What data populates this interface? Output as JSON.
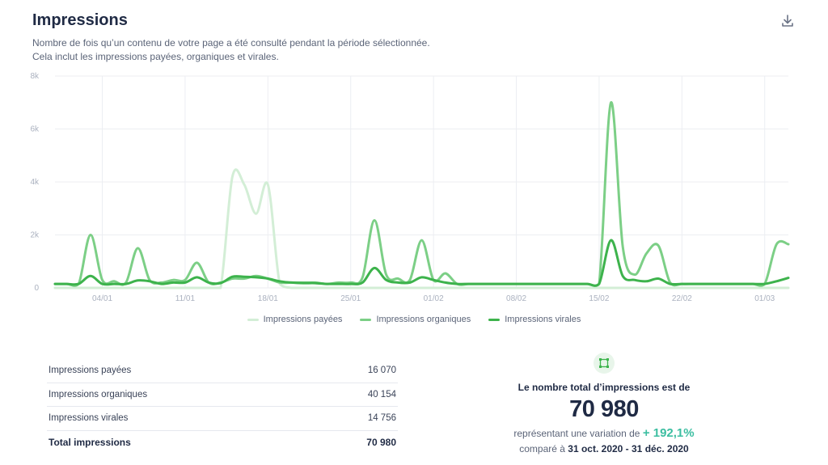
{
  "header": {
    "title": "Impressions",
    "subtitle_line1": "Nombre de fois qu’un contenu de votre page a été consulté pendant la période sélectionnée.",
    "subtitle_line2": "Cela inclut les impressions payées, organiques et virales.",
    "download_icon": "download-icon"
  },
  "chart_data": {
    "type": "line",
    "title": "Impressions",
    "y_ticks": [
      "0",
      "2k",
      "4k",
      "6k",
      "8k"
    ],
    "ylim": [
      0,
      8000
    ],
    "x_tick_labels": [
      "04/01",
      "11/01",
      "18/01",
      "25/01",
      "01/02",
      "08/02",
      "15/02",
      "22/02",
      "01/03"
    ],
    "x_tick_days": [
      4,
      11,
      18,
      25,
      32,
      39,
      46,
      53,
      60
    ],
    "x_days": [
      0,
      1,
      2,
      3,
      4,
      5,
      6,
      7,
      8,
      9,
      10,
      11,
      12,
      13,
      14,
      15,
      16,
      17,
      18,
      19,
      20,
      21,
      22,
      23,
      24,
      25,
      26,
      27,
      28,
      29,
      30,
      31,
      32,
      33,
      34,
      35,
      36,
      37,
      38,
      39,
      40,
      41,
      42,
      43,
      44,
      45,
      46,
      47,
      48,
      49,
      50,
      51,
      52,
      53,
      54,
      55,
      56,
      57,
      58,
      59,
      60,
      61,
      62
    ],
    "grid": true,
    "legend_position": "bottom",
    "series": [
      {
        "name": "Impressions payées",
        "color": "#d3eed6",
        "values": [
          0,
          0,
          0,
          0,
          0,
          0,
          0,
          0,
          0,
          0,
          0,
          0,
          0,
          0,
          0,
          4200,
          3900,
          2800,
          3900,
          150,
          0,
          0,
          0,
          0,
          0,
          0,
          0,
          0,
          0,
          0,
          0,
          0,
          0,
          0,
          0,
          0,
          0,
          0,
          0,
          0,
          0,
          0,
          0,
          0,
          0,
          0,
          0,
          0,
          0,
          0,
          0,
          0,
          0,
          0,
          0,
          0,
          0,
          0,
          0,
          0,
          0,
          0,
          0
        ]
      },
      {
        "name": "Impressions organiques",
        "color": "#7ccf86",
        "values": [
          150,
          150,
          150,
          2000,
          300,
          250,
          200,
          1500,
          300,
          200,
          300,
          300,
          950,
          200,
          200,
          350,
          350,
          450,
          350,
          200,
          200,
          200,
          200,
          150,
          200,
          200,
          400,
          2550,
          500,
          350,
          300,
          1800,
          300,
          550,
          150,
          150,
          150,
          150,
          150,
          150,
          150,
          150,
          150,
          150,
          150,
          150,
          150,
          7000,
          1550,
          500,
          1300,
          1600,
          200,
          150,
          150,
          150,
          150,
          150,
          150,
          150,
          150,
          1650,
          1650
        ]
      },
      {
        "name": "Impressions virales",
        "color": "#3db34c",
        "values": [
          150,
          150,
          150,
          450,
          150,
          150,
          150,
          280,
          250,
          150,
          200,
          200,
          400,
          200,
          180,
          420,
          420,
          400,
          350,
          250,
          200,
          180,
          180,
          150,
          150,
          150,
          200,
          750,
          300,
          200,
          200,
          400,
          300,
          200,
          150,
          150,
          150,
          150,
          150,
          150,
          150,
          150,
          150,
          150,
          150,
          150,
          150,
          1800,
          450,
          300,
          250,
          350,
          150,
          150,
          150,
          150,
          150,
          150,
          150,
          150,
          150,
          250,
          380
        ]
      }
    ]
  },
  "legend": {
    "paid": "Impressions payées",
    "organic": "Impressions organiques",
    "viral": "Impressions virales"
  },
  "summary": {
    "rows": [
      {
        "label": "Impressions payées",
        "value": "16 070"
      },
      {
        "label": "Impressions organiques",
        "value": "40 154"
      },
      {
        "label": "Impressions virales",
        "value": "14 756"
      }
    ],
    "total_label": "Total impressions",
    "total_value": "70 980"
  },
  "kpi": {
    "icon": "crop-square-icon",
    "heading": "Le nombre total d’impressions est de",
    "value": "70 980",
    "variation_prefix": "représentant une variation de",
    "variation_value": "+ 192,1%",
    "compare_prefix": "comparé à",
    "compare_period": "31 oct. 2020 - 31 déc. 2020",
    "accent_color": "#3cbea1"
  }
}
